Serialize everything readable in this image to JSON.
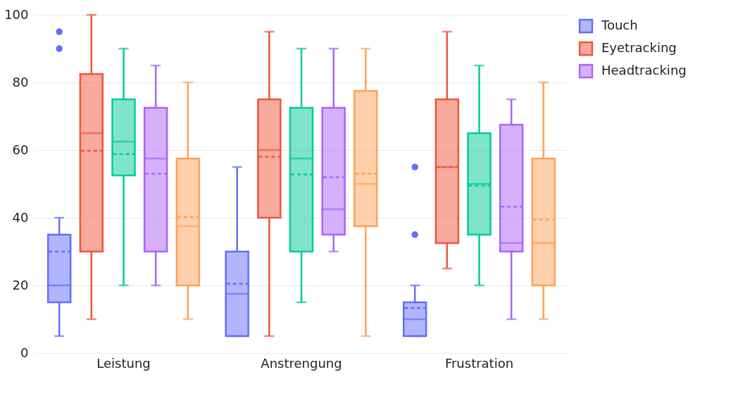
{
  "chart_data": {
    "type": "box",
    "categories": [
      "Leistung",
      "Anstrengung",
      "Frustration"
    ],
    "ylim": [
      0,
      100
    ],
    "yticks": [
      0,
      20,
      40,
      60,
      80,
      100
    ],
    "grid": "y",
    "legend": "top right",
    "series": [
      {
        "name": "Touch",
        "color": "#636efa",
        "boxes": [
          {
            "low": 5,
            "q1": 15,
            "median": 20,
            "q3": 35,
            "high": 40,
            "mean": 30,
            "outliers": [
              95,
              90
            ]
          },
          {
            "low": 5,
            "q1": 5,
            "median": 17.5,
            "q3": 30,
            "high": 55,
            "mean": 20.5
          },
          {
            "low": 5,
            "q1": 5,
            "median": 10,
            "q3": 15,
            "high": 20,
            "mean": 13.3,
            "outliers": [
              55,
              35
            ]
          }
        ]
      },
      {
        "name": "Eyetracking",
        "color": "#ef553b",
        "boxes": [
          {
            "low": 10,
            "q1": 30,
            "median": 65,
            "q3": 82.5,
            "high": 100,
            "mean": 59.8
          },
          {
            "low": 5,
            "q1": 40,
            "median": 60,
            "q3": 75,
            "high": 95,
            "mean": 58
          },
          {
            "low": 25,
            "q1": 32.5,
            "median": 55,
            "q3": 75,
            "high": 95,
            "mean": 55
          }
        ]
      },
      {
        "color": "#00cc96",
        "boxes": [
          {
            "low": 20,
            "q1": 52.5,
            "median": 62.5,
            "q3": 75,
            "high": 90,
            "mean": 58.8
          },
          {
            "low": 15,
            "q1": 30,
            "median": 57.5,
            "q3": 72.5,
            "high": 90,
            "mean": 52.8
          },
          {
            "low": 20,
            "q1": 35,
            "median": 50,
            "q3": 65,
            "high": 85,
            "mean": 49.5
          }
        ]
      },
      {
        "name": "Headtracking",
        "color": "#ab63fa",
        "boxes": [
          {
            "low": 20,
            "q1": 30,
            "median": 57.5,
            "q3": 72.5,
            "high": 85,
            "mean": 53
          },
          {
            "low": 30,
            "q1": 35,
            "median": 42.5,
            "q3": 72.5,
            "high": 90,
            "mean": 52
          },
          {
            "low": 10,
            "q1": 30,
            "median": 32.5,
            "q3": 67.5,
            "high": 75,
            "mean": 43.3
          }
        ]
      },
      {
        "color": "#ffa15a",
        "boxes": [
          {
            "low": 10,
            "q1": 20,
            "median": 37.5,
            "q3": 57.5,
            "high": 80,
            "mean": 40.2
          },
          {
            "low": 5,
            "q1": 37.5,
            "median": 50,
            "q3": 77.5,
            "high": 90,
            "mean": 53
          },
          {
            "low": 10,
            "q1": 20,
            "median": 32.5,
            "q3": 57.5,
            "high": 80,
            "mean": 39.5
          }
        ]
      }
    ]
  }
}
